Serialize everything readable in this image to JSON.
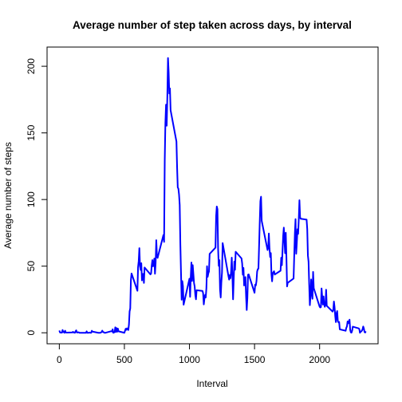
{
  "chart_data": {
    "type": "line",
    "title": "Average number of step taken across days, by interval",
    "x_label": "Interval",
    "y_label": "Average number of steps",
    "xlim": [
      -94.2,
      2449.2
    ],
    "ylim": [
      -8.25,
      214.42
    ],
    "xticks": [
      0,
      500,
      1000,
      1500,
      2000
    ],
    "yticks": [
      0,
      50,
      100,
      150,
      200
    ],
    "series": [
      {
        "color": "#0000ff",
        "x": [
          0,
          5,
          10,
          15,
          20,
          25,
          30,
          35,
          40,
          45,
          50,
          55,
          100,
          105,
          110,
          115,
          120,
          125,
          130,
          135,
          140,
          145,
          150,
          155,
          200,
          205,
          210,
          215,
          220,
          225,
          230,
          235,
          240,
          245,
          250,
          255,
          300,
          305,
          310,
          315,
          320,
          325,
          330,
          335,
          340,
          345,
          350,
          355,
          400,
          405,
          410,
          415,
          420,
          425,
          430,
          435,
          440,
          445,
          450,
          455,
          500,
          505,
          510,
          515,
          520,
          525,
          530,
          535,
          540,
          545,
          550,
          555,
          600,
          605,
          610,
          615,
          620,
          625,
          630,
          635,
          640,
          645,
          650,
          655,
          700,
          705,
          710,
          715,
          720,
          725,
          730,
          735,
          740,
          745,
          750,
          755,
          800,
          805,
          810,
          815,
          820,
          825,
          830,
          835,
          840,
          845,
          850,
          855,
          900,
          905,
          910,
          915,
          920,
          925,
          930,
          935,
          940,
          945,
          950,
          955,
          1000,
          1005,
          1010,
          1015,
          1020,
          1025,
          1030,
          1035,
          1040,
          1045,
          1050,
          1055,
          1100,
          1105,
          1110,
          1115,
          1120,
          1125,
          1130,
          1135,
          1140,
          1145,
          1150,
          1155,
          1200,
          1205,
          1210,
          1215,
          1220,
          1225,
          1230,
          1235,
          1240,
          1245,
          1250,
          1255,
          1300,
          1305,
          1310,
          1315,
          1320,
          1325,
          1330,
          1335,
          1340,
          1345,
          1350,
          1355,
          1400,
          1405,
          1410,
          1415,
          1420,
          1425,
          1430,
          1435,
          1440,
          1445,
          1450,
          1455,
          1500,
          1505,
          1510,
          1515,
          1520,
          1525,
          1530,
          1535,
          1540,
          1545,
          1550,
          1555,
          1600,
          1605,
          1610,
          1615,
          1620,
          1625,
          1630,
          1635,
          1640,
          1645,
          1650,
          1655,
          1700,
          1705,
          1710,
          1715,
          1720,
          1725,
          1730,
          1735,
          1740,
          1745,
          1750,
          1755,
          1800,
          1805,
          1810,
          1815,
          1820,
          1825,
          1830,
          1835,
          1840,
          1845,
          1850,
          1855,
          1900,
          1905,
          1910,
          1915,
          1920,
          1925,
          1930,
          1935,
          1940,
          1945,
          1950,
          1955,
          2000,
          2005,
          2010,
          2015,
          2020,
          2025,
          2030,
          2035,
          2040,
          2045,
          2050,
          2055,
          2100,
          2105,
          2110,
          2115,
          2120,
          2125,
          2130,
          2135,
          2140,
          2145,
          2150,
          2155,
          2200,
          2205,
          2210,
          2215,
          2220,
          2225,
          2230,
          2235,
          2240,
          2245,
          2250,
          2255,
          2300,
          2305,
          2310,
          2315,
          2320,
          2325,
          2330,
          2335,
          2340,
          2345,
          2350,
          2355
        ],
        "values": [
          1.7,
          0.3,
          0.1,
          0.2,
          0.1,
          2.1,
          0.5,
          0.9,
          0,
          1.5,
          0.3,
          0.1,
          0.3,
          0.7,
          0.2,
          0.3,
          0,
          1.1,
          1.8,
          0.2,
          0.2,
          0.4,
          0.3,
          0,
          0,
          0,
          1.1,
          0,
          0,
          0.1,
          0,
          0.2,
          0,
          0,
          1.5,
          0.9,
          0,
          0,
          0,
          0,
          0.2,
          0.6,
          1.6,
          0.6,
          0.5,
          0.1,
          0,
          0,
          1.2,
          0.9,
          2.6,
          0,
          0.3,
          0.4,
          4.1,
          0.7,
          3.5,
          0.8,
          3.1,
          1.1,
          0,
          1.6,
          3,
          2.2,
          3.3,
          3,
          2.1,
          6.1,
          16,
          18.3,
          39.5,
          44.5,
          31.5,
          49.3,
          53.8,
          63.5,
          50,
          47.1,
          52.2,
          39.3,
          44,
          44.2,
          37.4,
          49,
          43.8,
          44.4,
          50.5,
          54.5,
          49.9,
          51,
          55.7,
          44.3,
          52.3,
          69.5,
          57.8,
          56.2,
          73.4,
          68.2,
          129.4,
          157.5,
          171.2,
          155.4,
          177.3,
          206.2,
          195.9,
          179.6,
          183.4,
          167,
          143.5,
          124,
          109.1,
          108.1,
          103.7,
          95.97,
          66.2,
          45.2,
          24.8,
          38.8,
          35,
          21.1,
          40.6,
          27,
          42.4,
          52.7,
          38.9,
          50.8,
          44.3,
          37.4,
          34.7,
          28.3,
          25.1,
          31.9,
          31.4,
          29.7,
          21.3,
          25.5,
          28.4,
          26.5,
          33.4,
          50,
          42,
          44.6,
          46,
          59.2,
          63.9,
          87.7,
          94.8,
          92.8,
          63.4,
          50.2,
          54.5,
          32.4,
          26.5,
          37.7,
          45.1,
          67.3,
          42.3,
          39.9,
          43.3,
          40.98,
          46.2,
          56.4,
          42.8,
          25.1,
          39.98,
          53.5,
          47.3,
          60.8,
          55.8,
          51.96,
          43.6,
          48.7,
          35.5,
          37.5,
          41.8,
          27.5,
          17.1,
          26.1,
          43.6,
          43.8,
          30,
          36.1,
          35.5,
          38.8,
          45.96,
          47.8,
          48.1,
          65.3,
          82.9,
          98.7,
          102.1,
          84,
          62.1,
          64.1,
          74.5,
          63.2,
          56.9,
          59.8,
          43.9,
          38.6,
          44.7,
          45.5,
          46.2,
          43.7,
          46.6,
          56.3,
          50.7,
          61.2,
          72.7,
          78.9,
          68.9,
          59.7,
          75.1,
          56.5,
          34.8,
          37.5,
          40.7,
          58,
          74.7,
          85.3,
          59.3,
          67.8,
          77.7,
          74.2,
          85.3,
          99.5,
          86.6,
          85.6,
          84.9,
          77.8,
          58,
          53.4,
          36.3,
          20.7,
          27.4,
          40,
          30.2,
          25.5,
          45.7,
          33.5,
          19.6,
          19,
          19.3,
          33.3,
          26.8,
          21.2,
          27.3,
          21.3,
          19.5,
          21.3,
          32.3,
          20.2,
          15.9,
          17.2,
          23.5,
          19.2,
          12.5,
          8,
          14.7,
          16.3,
          8.7,
          7.8,
          8.1,
          2.6,
          1.5,
          3.7,
          4.8,
          8.5,
          7.1,
          8.7,
          9.8,
          2.2,
          0.3,
          0.1,
          1.6,
          4.6,
          3.3,
          2.8,
          0,
          0.8,
          1,
          1.6,
          2.6,
          4.7,
          3.3,
          0.6,
          0.2,
          1.1
        ]
      }
    ]
  }
}
